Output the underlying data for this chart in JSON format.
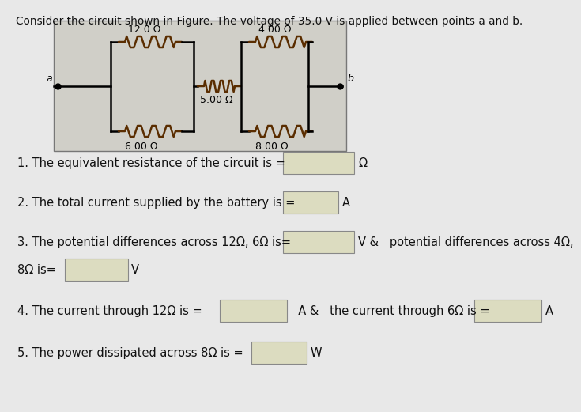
{
  "title": "Consider the circuit shown in Figure. The voltage of 35.0 V is applied between points a and b.",
  "background_color": "#e8e8e8",
  "circuit_bg": "#d0cfc8",
  "resistors": {
    "R1": "12.0 Ω",
    "R2": "6.00 Ω",
    "R3": "5.00 Ω",
    "R4": "4.00 Ω",
    "R5": "8.00 Ω"
  },
  "questions": [
    "1. The equivalent resistance of the circuit is = ",
    "2. The total current supplied by the battery is = ",
    "3. The potential differences across 12Ω, 6Ω is=",
    "8Ω is=",
    "4. The current through 12Ω is = ",
    "  A &   the current through 6Ω is = ",
    "5. The power dissipated across 8Ω is = "
  ],
  "units": [
    "Ω",
    "A",
    "V &   potential differences across 4Ω,",
    "V",
    "A",
    "W"
  ],
  "box_color": "#dcdcc0",
  "text_color": "#111111",
  "font_size": 10.5
}
